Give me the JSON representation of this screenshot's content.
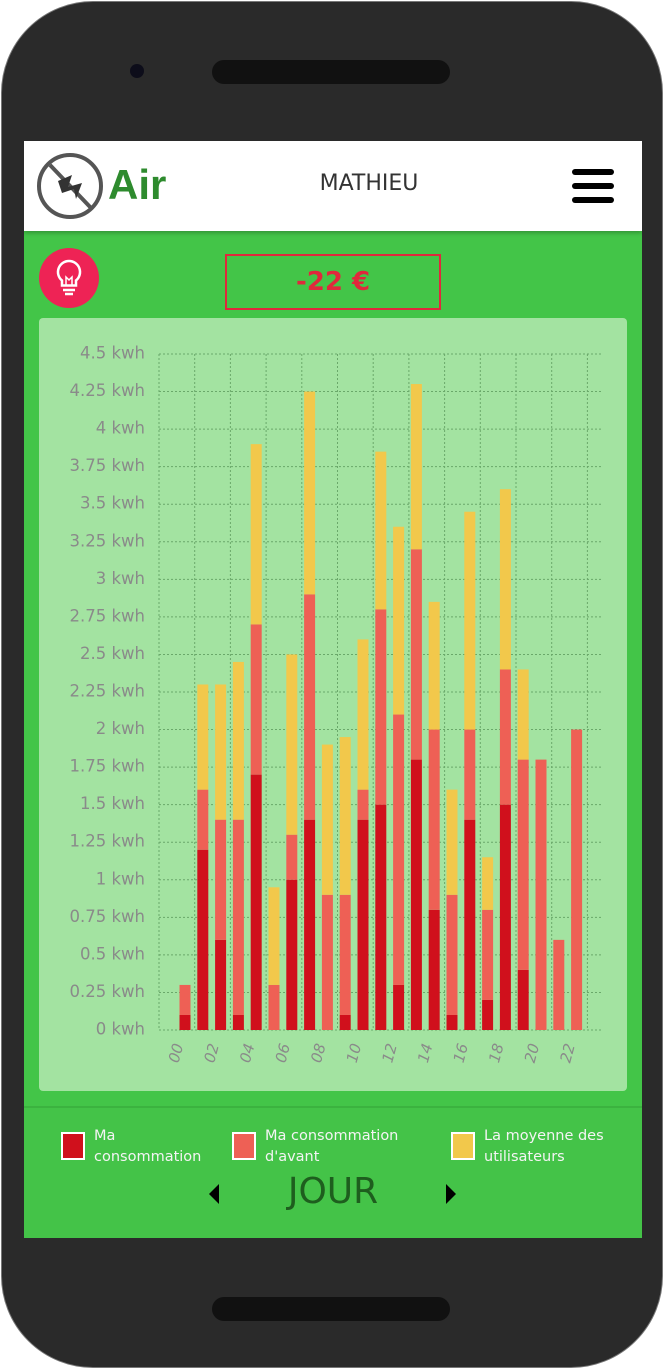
{
  "header": {
    "brand": "Air",
    "user": "MATHIEU"
  },
  "balance": "-22 €",
  "chart_data": {
    "type": "stacked-bar",
    "categories": [
      "00",
      null,
      "02",
      null,
      "04",
      null,
      "06",
      null,
      "08",
      null,
      "10",
      null,
      "12",
      null,
      "14",
      null,
      "16",
      null,
      "18",
      null,
      "20",
      null,
      "22"
    ],
    "series": [
      {
        "name": "Ma consommation",
        "color": "#d0101c",
        "values": [
          0.1,
          1.2,
          0.6,
          0.1,
          1.7,
          0,
          1.0,
          1.4,
          0,
          0.1,
          1.4,
          1.5,
          0.3,
          1.8,
          0.8,
          0.1,
          1.4,
          0.2,
          1.5,
          0.4,
          0,
          0,
          0
        ]
      },
      {
        "name": "Ma consommation d'avant",
        "color": "#ee6055",
        "values": [
          0.2,
          0.4,
          0.8,
          1.3,
          1.0,
          0.3,
          0.3,
          1.5,
          0.9,
          0.8,
          0.2,
          1.3,
          1.8,
          1.4,
          1.2,
          0.8,
          0.6,
          0.6,
          0.9,
          1.4,
          1.8,
          0.6,
          2.0
        ]
      },
      {
        "name": "La moyenne des utilisateurs",
        "color": "#f2c84b",
        "values": [
          0,
          0.7,
          0.9,
          1.05,
          1.2,
          0.65,
          1.2,
          1.35,
          1.0,
          1.05,
          1.0,
          1.05,
          1.25,
          1.1,
          0.85,
          0.7,
          1.45,
          0.35,
          1.2,
          0.6,
          0,
          0,
          0
        ]
      }
    ],
    "ylim": [
      0,
      4.5
    ],
    "yticks": [
      {
        "value": 0,
        "label": "0 kwh"
      },
      {
        "value": 0.25,
        "label": "0.25 kwh"
      },
      {
        "value": 0.5,
        "label": "0.5 kwh"
      },
      {
        "value": 0.75,
        "label": "0.75 kwh"
      },
      {
        "value": 1,
        "label": "1 kwh"
      },
      {
        "value": 1.25,
        "label": "1.25 kwh"
      },
      {
        "value": 1.5,
        "label": "1.5 kwh"
      },
      {
        "value": 1.75,
        "label": "1.75 kwh"
      },
      {
        "value": 2,
        "label": "2 kwh"
      },
      {
        "value": 2.25,
        "label": "2.25 kwh"
      },
      {
        "value": 2.5,
        "label": "2.5 kwh"
      },
      {
        "value": 2.75,
        "label": "2.75 kwh"
      },
      {
        "value": 3,
        "label": "3 kwh"
      },
      {
        "value": 3.25,
        "label": "3.25 kwh"
      },
      {
        "value": 3.5,
        "label": "3.5 kwh"
      },
      {
        "value": 3.75,
        "label": "3.75 kwh"
      },
      {
        "value": 4,
        "label": "4 kwh"
      },
      {
        "value": 4.25,
        "label": "4.25 kwh"
      },
      {
        "value": 4.5,
        "label": "4.5 kwh"
      }
    ],
    "grid": true
  },
  "period": "JOUR"
}
